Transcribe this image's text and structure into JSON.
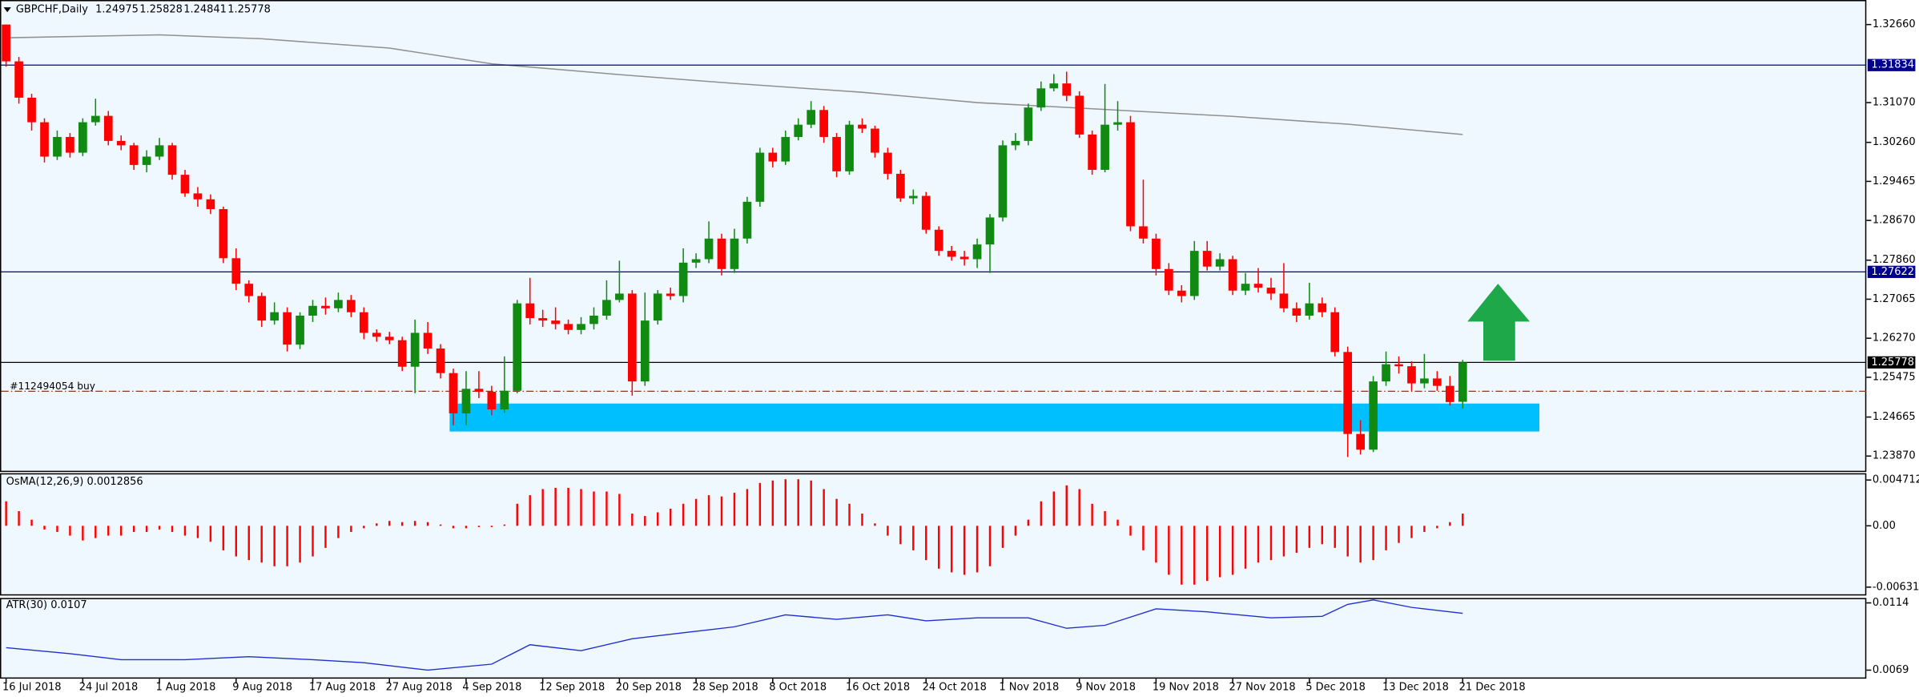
{
  "chart_data": [
    {
      "type": "candlestick",
      "title": "GBPCHF,Daily",
      "categories": [
        "16 Jul 2018",
        null,
        null,
        null,
        null,
        null,
        "24 Jul 2018",
        null,
        null,
        null,
        null,
        null,
        "1 Aug 2018",
        null,
        null,
        null,
        null,
        null,
        "9 Aug 2018",
        null,
        null,
        null,
        null,
        null,
        "17 Aug 2018",
        null,
        null,
        null,
        null,
        null,
        "27 Aug 2018",
        null,
        null,
        null,
        null,
        null,
        "4 Sep 2018",
        null,
        null,
        null,
        null,
        null,
        "12 Sep 2018",
        null,
        null,
        null,
        null,
        null,
        "20 Sep 2018",
        null,
        null,
        null,
        null,
        null,
        "28 Sep 2018",
        null,
        null,
        null,
        null,
        null,
        "8 Oct 2018",
        null,
        null,
        null,
        null,
        null,
        "16 Oct 2018",
        null,
        null,
        null,
        null,
        null,
        "24 Oct 2018",
        null,
        null,
        null,
        null,
        null,
        "1 Nov 2018",
        null,
        null,
        null,
        null,
        null,
        "9 Nov 2018",
        null,
        null,
        null,
        null,
        null,
        "19 Nov 2018",
        null,
        null,
        null,
        null,
        null,
        "27 Nov 2018",
        null,
        null,
        null,
        null,
        null,
        "5 Dec 2018",
        null,
        null,
        null,
        null,
        null,
        "13 Dec 2018",
        null,
        null,
        null,
        null,
        null,
        "21 Dec 2018"
      ],
      "open": [
        1.3266,
        1.3191,
        1.3117,
        1.3067,
        1.2997,
        1.3037,
        1.3005,
        1.3067,
        1.308,
        1.3029,
        1.302,
        1.298,
        1.2997,
        1.302,
        1.296,
        1.2922,
        1.291,
        1.289,
        1.279,
        1.2738,
        1.2713,
        1.2663,
        1.268,
        1.2614,
        1.2673,
        1.2693,
        1.2688,
        1.2705,
        1.268,
        1.2638,
        1.263,
        1.2623,
        1.2569,
        1.2638,
        1.2606,
        1.2556,
        1.2474,
        1.2524,
        1.2518,
        1.2482,
        1.252,
        1.2698,
        1.2668,
        1.2663,
        1.2656,
        1.2644,
        1.2656,
        1.2673,
        1.2705,
        1.2718,
        1.2539,
        1.2663,
        1.2718,
        1.2713,
        1.2781,
        1.2788,
        1.283,
        1.2768,
        1.283,
        1.2905,
        1.3005,
        1.2987,
        1.3037,
        1.3062,
        1.3092,
        1.3037,
        1.2967,
        1.3062,
        1.3054,
        1.3005,
        1.2962,
        1.2912,
        1.2917,
        1.2848,
        1.2805,
        1.2793,
        1.2788,
        1.2818,
        1.2873,
        1.302,
        1.3029,
        1.3097,
        1.3136,
        1.3146,
        1.3121,
        1.3042,
        1.297,
        1.3062,
        1.3067,
        1.2855,
        1.283,
        1.2768,
        1.2724,
        1.2713,
        1.2805,
        1.2773,
        1.2788,
        1.2724,
        1.2738,
        1.273,
        1.2718,
        1.2688,
        1.2673,
        1.2698,
        1.268,
        1.2599,
        1.2432,
        1.24,
        1.2539,
        1.2574,
        1.257,
        1.2535,
        1.2545,
        1.253,
        1.24975
      ],
      "high": [
        1.3266,
        1.32,
        1.3125,
        1.3075,
        1.305,
        1.3045,
        1.3075,
        1.3115,
        1.309,
        1.304,
        1.3025,
        1.301,
        1.3035,
        1.3025,
        1.297,
        1.2935,
        1.292,
        1.2895,
        1.281,
        1.2745,
        1.272,
        1.27,
        1.269,
        1.268,
        1.2705,
        1.271,
        1.272,
        1.2715,
        1.269,
        1.2645,
        1.264,
        1.263,
        1.2665,
        1.266,
        1.2615,
        1.2565,
        1.256,
        1.256,
        1.253,
        1.259,
        1.2705,
        1.275,
        1.2685,
        1.269,
        1.2665,
        1.267,
        1.269,
        1.2745,
        1.2785,
        1.2725,
        1.272,
        1.2725,
        1.273,
        1.281,
        1.28,
        1.2865,
        1.284,
        1.285,
        1.2915,
        1.3015,
        1.3015,
        1.305,
        1.3075,
        1.311,
        1.31,
        1.3045,
        1.307,
        1.3075,
        1.306,
        1.3015,
        1.297,
        1.293,
        1.2925,
        1.2855,
        1.2815,
        1.2805,
        1.283,
        1.288,
        1.303,
        1.3045,
        1.3105,
        1.315,
        1.3165,
        1.317,
        1.313,
        1.305,
        1.3145,
        1.311,
        1.308,
        1.295,
        1.284,
        1.278,
        1.2735,
        1.2825,
        1.2825,
        1.28,
        1.2795,
        1.276,
        1.277,
        1.275,
        1.278,
        1.27,
        1.274,
        1.271,
        1.269,
        1.261,
        1.246,
        1.255,
        1.26,
        1.259,
        1.258,
        1.2595,
        1.256,
        1.255,
        1.25828
      ],
      "low": [
        1.318,
        1.3105,
        1.305,
        1.2985,
        1.299,
        1.2995,
        1.2998,
        1.306,
        1.302,
        1.301,
        1.297,
        1.2965,
        1.299,
        1.295,
        1.2915,
        1.2895,
        1.288,
        1.278,
        1.2725,
        1.27,
        1.265,
        1.2655,
        1.26,
        1.2605,
        1.266,
        1.2675,
        1.268,
        1.267,
        1.2625,
        1.262,
        1.2615,
        1.256,
        1.2515,
        1.2595,
        1.2545,
        1.245,
        1.245,
        1.2505,
        1.247,
        1.2475,
        1.2515,
        1.2655,
        1.265,
        1.2645,
        1.2635,
        1.2635,
        1.2645,
        1.2665,
        1.27,
        1.251,
        1.253,
        1.2655,
        1.2705,
        1.27,
        1.277,
        1.278,
        1.2755,
        1.276,
        1.282,
        1.2895,
        1.2975,
        1.298,
        1.303,
        1.3055,
        1.3025,
        1.2955,
        1.296,
        1.3045,
        1.2995,
        1.295,
        1.2905,
        1.29,
        1.284,
        1.2795,
        1.2785,
        1.2775,
        1.277,
        1.276,
        1.2865,
        1.301,
        1.302,
        1.309,
        1.313,
        1.311,
        1.3035,
        1.296,
        1.2965,
        1.305,
        1.2845,
        1.282,
        1.2755,
        1.2715,
        1.27,
        1.2705,
        1.2765,
        1.2765,
        1.2715,
        1.2715,
        1.272,
        1.2705,
        1.268,
        1.266,
        1.2665,
        1.267,
        1.259,
        1.2385,
        1.239,
        1.2395,
        1.253,
        1.2555,
        1.252,
        1.2525,
        1.252,
        1.249,
        1.24841
      ],
      "close": [
        1.3191,
        1.3117,
        1.3067,
        1.2997,
        1.3037,
        1.3005,
        1.3067,
        1.308,
        1.3029,
        1.302,
        1.298,
        1.2997,
        1.302,
        1.296,
        1.2922,
        1.291,
        1.289,
        1.279,
        1.2738,
        1.2713,
        1.2663,
        1.268,
        1.2614,
        1.2673,
        1.2693,
        1.2688,
        1.2705,
        1.268,
        1.2638,
        1.263,
        1.2623,
        1.2569,
        1.2638,
        1.2606,
        1.2556,
        1.2474,
        1.2524,
        1.2518,
        1.2482,
        1.252,
        1.2698,
        1.2668,
        1.2663,
        1.2656,
        1.2644,
        1.2656,
        1.2673,
        1.2705,
        1.2718,
        1.2539,
        1.2663,
        1.2718,
        1.2713,
        1.2781,
        1.2788,
        1.283,
        1.2768,
        1.283,
        1.2905,
        1.3005,
        1.2987,
        1.3037,
        1.3062,
        1.3092,
        1.3037,
        1.2967,
        1.3062,
        1.3054,
        1.3005,
        1.2962,
        1.2912,
        1.2917,
        1.2848,
        1.2805,
        1.2793,
        1.2788,
        1.2818,
        1.2873,
        1.302,
        1.3029,
        1.3097,
        1.3136,
        1.3146,
        1.3121,
        1.3042,
        1.297,
        1.3062,
        1.3067,
        1.2855,
        1.283,
        1.2768,
        1.2724,
        1.2713,
        1.2805,
        1.2773,
        1.2788,
        1.2724,
        1.2738,
        1.273,
        1.2718,
        1.2688,
        1.2673,
        1.2698,
        1.268,
        1.2599,
        1.2432,
        1.24,
        1.2539,
        1.2574,
        1.257,
        1.2535,
        1.2545,
        1.253,
        1.2497,
        1.25778
      ],
      "up_color": "#118a11",
      "down_color": "#ff0000",
      "ma": {
        "color": "#909090",
        "x": [
          0,
          12,
          20,
          30,
          38,
          48,
          57,
          67,
          76,
          86,
          96,
          105,
          114
        ],
        "values": [
          1.3239,
          1.3245,
          1.3237,
          1.3218,
          1.3186,
          1.3164,
          1.3146,
          1.3128,
          1.3107,
          1.3093,
          1.3079,
          1.3063,
          1.3042
        ]
      },
      "hlines": [
        {
          "value": 1.31834,
          "color": "#00008b"
        },
        {
          "value": 1.27622,
          "color": "#00008b"
        },
        {
          "value": 1.25778,
          "color": "#000000"
        }
      ],
      "order_label": "#112494054 buy",
      "order_price": 1.2519,
      "order_color": "#8b3a1a",
      "zone": {
        "x": [
          35,
          120
        ],
        "y": [
          1.2437,
          1.2494
        ],
        "color": "#00bfff"
      },
      "ylim": [
        1.2357,
        1.3316
      ],
      "yticks": [
        {
          "value": 1.3266,
          "label": "1.32660"
        },
        {
          "value": 1.3107,
          "label": "1.31070"
        },
        {
          "value": 1.3026,
          "label": "1.30260"
        },
        1.29465,
        {
          "value": 1.2867,
          "label": "1.28670"
        },
        {
          "value": 1.2786,
          "label": "1.27860"
        },
        1.27065,
        {
          "value": 1.2627,
          "label": "1.26270"
        },
        1.25475,
        1.24665,
        {
          "value": 1.2387,
          "label": "1.23870"
        }
      ]
    },
    {
      "type": "bar",
      "title": "OsMA(12,26,9) 0.0012856",
      "color": "#ff0000",
      "values": [
        0.00252,
        0.00151,
        0.00063,
        -0.00038,
        -0.00063,
        -0.00101,
        -0.00151,
        -0.00126,
        -0.00101,
        -0.00101,
        -0.00063,
        -0.00063,
        -0.00038,
        -0.00063,
        -0.00101,
        -0.00126,
        -0.00164,
        -0.00252,
        -0.00315,
        -0.00353,
        -0.00378,
        -0.00416,
        -0.00416,
        -0.00378,
        -0.00315,
        -0.00227,
        -0.00126,
        -0.00063,
        -0.00025,
        0.00025,
        0.0005,
        0.00038,
        0.0005,
        0.00038,
        0.00013,
        -0.00025,
        -0.00025,
        -0.00013,
        -0.00013,
        0.00013,
        0.00227,
        0.00315,
        0.00378,
        0.00391,
        0.00391,
        0.00378,
        0.00353,
        0.00353,
        0.00328,
        0.00126,
        0.00101,
        0.00139,
        0.00176,
        0.00227,
        0.00277,
        0.00315,
        0.00302,
        0.0034,
        0.00378,
        0.00441,
        0.00466,
        0.00479,
        0.00479,
        0.00466,
        0.00378,
        0.00277,
        0.00227,
        0.00126,
        0.00025,
        -0.00101,
        -0.00189,
        -0.00252,
        -0.00353,
        -0.00441,
        -0.00479,
        -0.00504,
        -0.00479,
        -0.00416,
        -0.00227,
        -0.00101,
        0.00063,
        0.00252,
        0.00353,
        0.00416,
        0.00378,
        0.00227,
        0.00151,
        0.00063,
        -0.00101,
        -0.00252,
        -0.00378,
        -0.00504,
        -0.00605,
        -0.00605,
        -0.00567,
        -0.00529,
        -0.00504,
        -0.00441,
        -0.00378,
        -0.00353,
        -0.00315,
        -0.00277,
        -0.00227,
        -0.00189,
        -0.00227,
        -0.00315,
        -0.00378,
        -0.00353,
        -0.00252,
        -0.00176,
        -0.00126,
        -0.00063,
        -0.00025,
        0.00038,
        0.00126
      ],
      "ylim": [
        -0.00717,
        0.00541
      ],
      "yticks": [
        0.0047125,
        {
          "value": 0,
          "label": "0.00"
        },
        {
          "value": -0.00631,
          "label": "-0.006310"
        }
      ]
    },
    {
      "type": "line",
      "title": "ATR(30) 0.0107",
      "color": "#1f2fd0",
      "x": [
        0,
        5,
        9,
        14,
        19,
        24,
        28,
        33,
        38,
        41,
        45,
        49,
        53,
        57,
        61,
        65,
        69,
        72,
        76,
        80,
        83,
        86,
        90,
        94,
        99,
        103,
        105,
        107,
        110,
        114
      ],
      "values": [
        0.0084,
        0.008,
        0.0076,
        0.0076,
        0.0078,
        0.0076,
        0.0074,
        0.0069,
        0.0073,
        0.0086,
        0.0082,
        0.009,
        0.0094,
        0.0098,
        0.0106,
        0.0103,
        0.0106,
        0.0102,
        0.0104,
        0.0104,
        0.0097,
        0.0099,
        0.011,
        0.0108,
        0.0104,
        0.0105,
        0.0113,
        0.0116,
        0.0111,
        0.0107
      ],
      "ylim": [
        0.00633,
        0.01173
      ],
      "yticks": [
        0.0114,
        0.0069
      ]
    }
  ]
}
